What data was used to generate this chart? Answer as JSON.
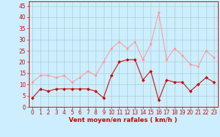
{
  "x": [
    0,
    1,
    2,
    3,
    4,
    5,
    6,
    7,
    8,
    9,
    10,
    11,
    12,
    13,
    14,
    15,
    16,
    17,
    18,
    19,
    20,
    21,
    22,
    23
  ],
  "vent_moyen": [
    4,
    8,
    7,
    8,
    8,
    8,
    8,
    8,
    7,
    4,
    14,
    20,
    21,
    21,
    12,
    16,
    3,
    12,
    11,
    11,
    7,
    10,
    13,
    11
  ],
  "rafales": [
    11,
    14,
    14,
    13,
    14,
    11,
    13,
    16,
    14,
    20,
    26,
    29,
    26,
    29,
    21,
    28,
    42,
    21,
    26,
    23,
    19,
    18,
    25,
    22
  ],
  "color_moyen": "#cc0000",
  "color_rafales": "#ff9999",
  "bg_color": "#cceeff",
  "grid_color": "#aacccc",
  "xlabel": "Vent moyen/en rafales ( km/h )",
  "xlabel_color": "#cc0000",
  "yticks": [
    0,
    5,
    10,
    15,
    20,
    25,
    30,
    35,
    40,
    45
  ],
  "ylim": [
    0,
    47
  ],
  "xlim": [
    -0.5,
    23.5
  ]
}
